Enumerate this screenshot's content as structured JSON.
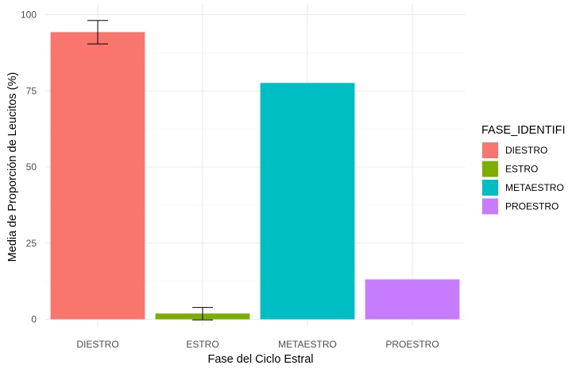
{
  "chart_data": {
    "type": "bar",
    "title": "",
    "xlabel": "Fase del Ciclo Estral",
    "ylabel": "Media de Proporción de Leucitos (%)",
    "categories": [
      "DIESTRO",
      "ESTRO",
      "METAESTRO",
      "PROESTRO"
    ],
    "values": [
      94.3,
      1.9,
      77.6,
      13.1
    ],
    "error_bars": [
      {
        "category": "DIESTRO",
        "low": 90.4,
        "high": 98.1
      },
      {
        "category": "ESTRO",
        "low": -0.2,
        "high": 3.9
      }
    ],
    "colors": [
      "#F8766D",
      "#7CAE00",
      "#00BFC4",
      "#C77CFF"
    ],
    "ylim": [
      0,
      100
    ],
    "yticks": [
      0,
      25,
      50,
      75,
      100
    ],
    "grid": true,
    "legend": {
      "title": "FASE_IDENTIFI",
      "position": "right",
      "items": [
        "DIESTRO",
        "ESTRO",
        "METAESTRO",
        "PROESTRO"
      ]
    }
  }
}
